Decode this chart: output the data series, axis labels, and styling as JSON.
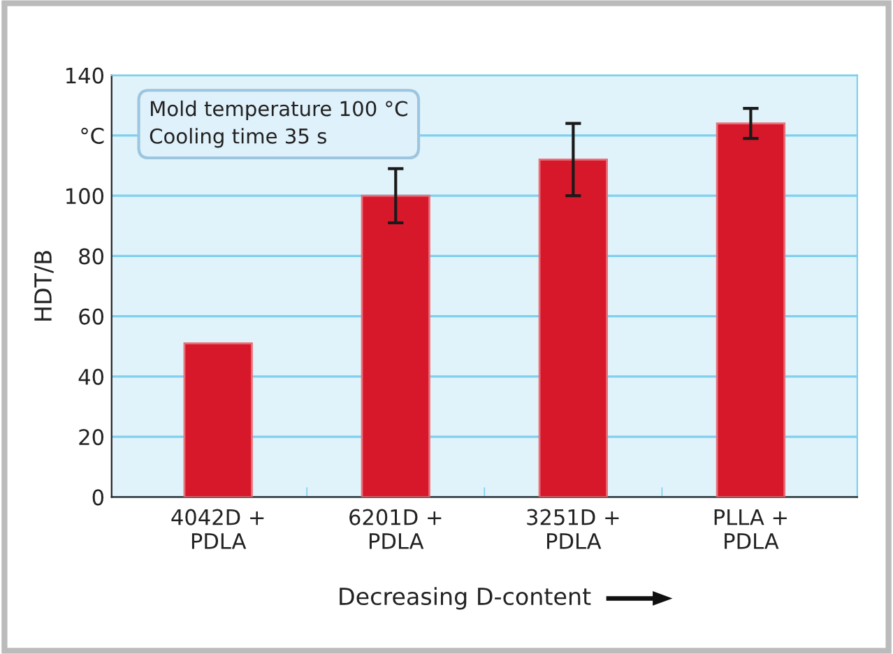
{
  "chart_data": {
    "type": "bar",
    "ylabel": "HDT/B",
    "xlabel": "Decreasing D-content",
    "categories": [
      "4042D +\nPDLA",
      "6201D +\nPDLA",
      "3251D +\nPDLA",
      "PLLA +\nPDLA"
    ],
    "values": [
      51,
      100,
      112,
      124
    ],
    "errors": [
      null,
      [
        91,
        109
      ],
      [
        100,
        124
      ],
      [
        119,
        129
      ]
    ],
    "color": "#d7182a",
    "ylim": [
      0,
      140
    ],
    "yticks": [
      0,
      20,
      40,
      60,
      80,
      100,
      {
        "value": 120,
        "label": "°C"
      },
      140
    ],
    "grid": "y",
    "annotations": [
      "Mold temperature 100 °C\nCooling time 35 s"
    ]
  }
}
